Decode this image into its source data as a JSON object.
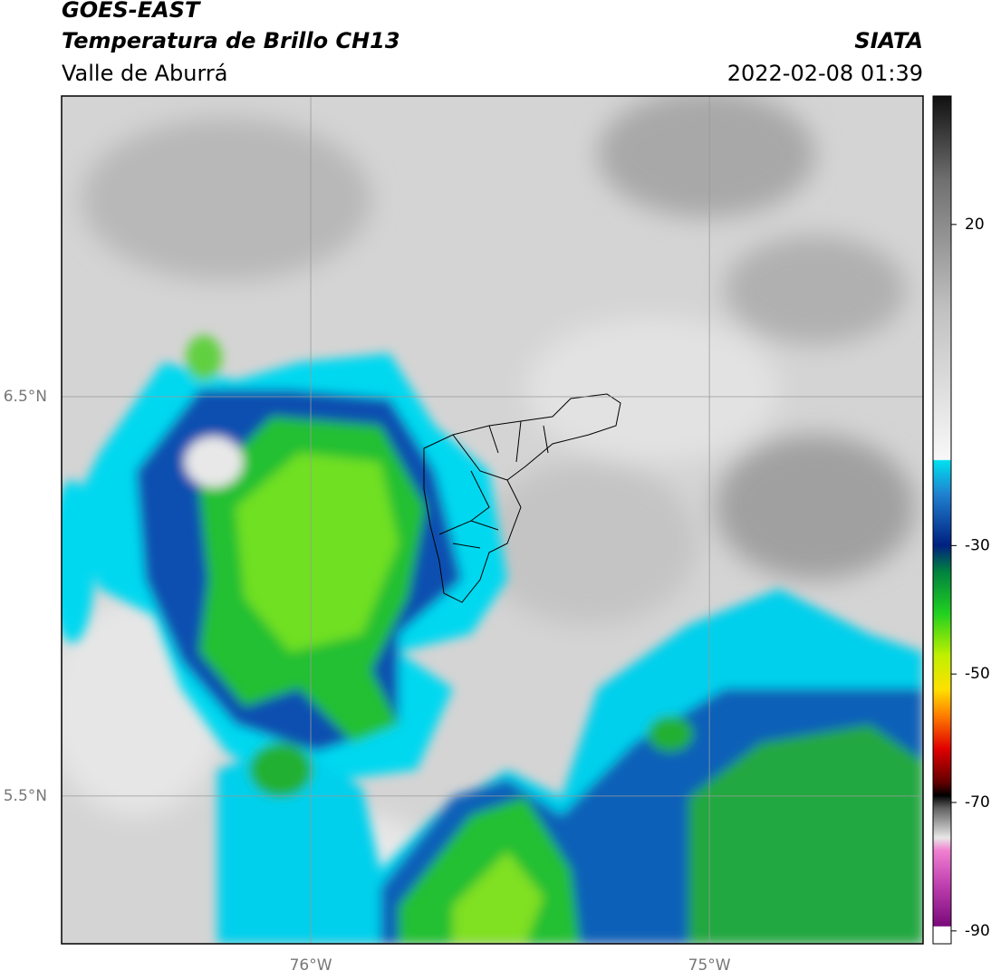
{
  "header": {
    "title": "GOES-EAST",
    "subtitle": "Temperatura de Brillo CH13",
    "region": "Valle de Aburrá",
    "source": "SIATA",
    "datetime": "2022-02-08 01:39"
  },
  "map": {
    "lon_range": [
      -76.625,
      -74.464
    ],
    "lat_range": [
      5.13,
      7.253
    ],
    "lon_ticks": [
      {
        "value": -76,
        "label": "76°W"
      },
      {
        "value": -75,
        "label": "75°W"
      }
    ],
    "lat_ticks": [
      {
        "value": 6.5,
        "label": "6.5°N"
      },
      {
        "value": 5.5,
        "label": "5.5°N"
      }
    ]
  },
  "colorbar": {
    "range": [
      -92,
      40
    ],
    "ticks": [
      20,
      -30,
      -50,
      -70,
      -90
    ]
  }
}
